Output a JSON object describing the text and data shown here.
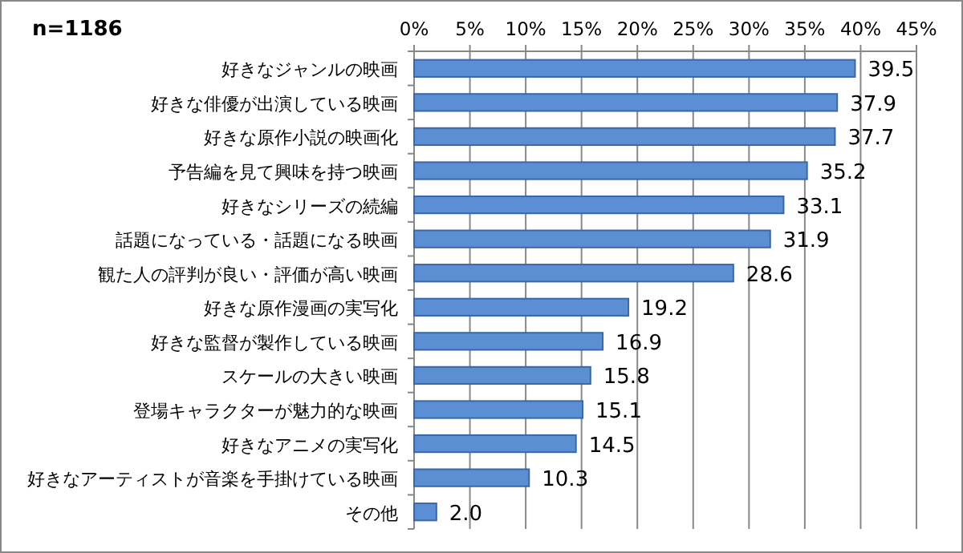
{
  "chart_data": {
    "type": "bar",
    "orientation": "horizontal",
    "annotations": [
      "n=1186"
    ],
    "categories": [
      "好きなジャンルの映画",
      "好きな俳優が出演している映画",
      "好きな原作小説の映画化",
      "予告編を見て興味を持つ映画",
      "好きなシリーズの続編",
      "話題になっている・話題になる映画",
      "観た人の評判が良い・評価が高い映画",
      "好きな原作漫画の実写化",
      "好きな監督が製作している映画",
      "スケールの大きい映画",
      "登場キャラクターが魅力的な映画",
      "好きなアニメの実写化",
      "好きなアーティストが音楽を手掛けている映画",
      "その他"
    ],
    "values": [
      39.5,
      37.9,
      37.7,
      35.2,
      33.1,
      31.9,
      28.6,
      19.2,
      16.9,
      15.8,
      15.1,
      14.5,
      10.3,
      2.0
    ],
    "value_labels": [
      "39.5",
      "37.9",
      "37.7",
      "35.2",
      "33.1",
      "31.9",
      "28.6",
      "19.2",
      "16.9",
      "15.8",
      "15.1",
      "14.5",
      "10.3",
      "2.0"
    ],
    "color": "#5b8fd4",
    "xlim": [
      0,
      45
    ],
    "xticks": [
      {
        "value": 0,
        "label": "0%"
      },
      {
        "value": 5,
        "label": "5%"
      },
      {
        "value": 10,
        "label": "10%"
      },
      {
        "value": 15,
        "label": "15%"
      },
      {
        "value": 20,
        "label": "20%"
      },
      {
        "value": 25,
        "label": "25%"
      },
      {
        "value": 30,
        "label": "30%"
      },
      {
        "value": 35,
        "label": "35%"
      },
      {
        "value": 40,
        "label": "40%"
      },
      {
        "value": 45,
        "label": "45%"
      }
    ],
    "grid": "x"
  }
}
